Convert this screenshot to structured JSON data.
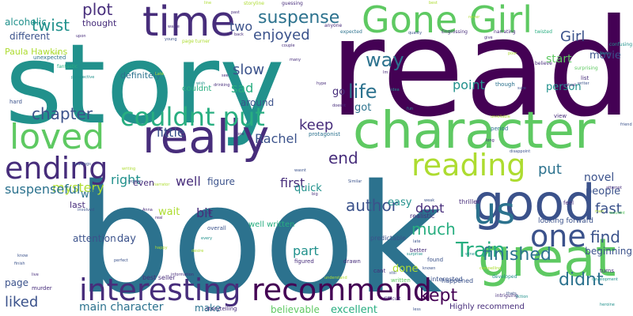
{
  "palette": {
    "dark_purple": "#440154",
    "indigo": "#472d7b",
    "slate_blue": "#3b528b",
    "steel_blue": "#2c728e",
    "teal": "#21918c",
    "sea_green": "#28ae80",
    "green": "#5ec962",
    "lime": "#addc30",
    "yellow": "#fde725",
    "background": "#ffffff"
  },
  "words": [
    {
      "text": "book",
      "color": "steel_blue",
      "weight": 1.0
    },
    {
      "text": "read",
      "color": "dark_purple",
      "weight": 0.95
    },
    {
      "text": "story",
      "color": "teal",
      "weight": 0.9
    },
    {
      "text": "character",
      "color": "green",
      "weight": 0.6
    },
    {
      "text": "Gone Girl",
      "color": "green",
      "weight": 0.45
    },
    {
      "text": "good",
      "color": "slate_blue",
      "weight": 0.45
    },
    {
      "text": "great",
      "color": "green",
      "weight": 0.45
    },
    {
      "text": "really",
      "color": "indigo",
      "weight": 0.45
    },
    {
      "text": "time",
      "color": "indigo",
      "weight": 0.4
    },
    {
      "text": "loved",
      "color": "green",
      "weight": 0.35
    },
    {
      "text": "recommend",
      "color": "dark_purple",
      "weight": 0.33
    },
    {
      "text": "interesting",
      "color": "indigo",
      "weight": 0.33
    },
    {
      "text": "ending",
      "color": "indigo",
      "weight": 0.33
    },
    {
      "text": "reading",
      "color": "lime",
      "weight": 0.3
    },
    {
      "text": "one",
      "color": "slate_blue",
      "weight": 0.3
    },
    {
      "text": "us",
      "color": "steel_blue",
      "weight": 0.3
    },
    {
      "text": "couldnt put",
      "color": "sea_green",
      "weight": 0.28
    },
    {
      "text": "way",
      "color": "steel_blue",
      "weight": 0.22
    },
    {
      "text": "life",
      "color": "steel_blue",
      "weight": 0.22
    },
    {
      "text": "Train",
      "color": "sea_green",
      "weight": 0.22
    },
    {
      "text": "suspense",
      "color": "steel_blue",
      "weight": 0.2
    },
    {
      "text": "finished",
      "color": "steel_blue",
      "weight": 0.2
    },
    {
      "text": "kept",
      "color": "dark_purple",
      "weight": 0.2
    },
    {
      "text": "didnt",
      "color": "steel_blue",
      "weight": 0.2
    },
    {
      "text": "plot",
      "color": "indigo",
      "weight": 0.18
    },
    {
      "text": "twist",
      "color": "teal",
      "weight": 0.18
    },
    {
      "text": "chapter",
      "color": "slate_blue",
      "weight": 0.18
    },
    {
      "text": "enjoyed",
      "color": "slate_blue",
      "weight": 0.18
    },
    {
      "text": "Girl",
      "color": "slate_blue",
      "weight": 0.18
    },
    {
      "text": "slow",
      "color": "slate_blue",
      "weight": 0.18
    },
    {
      "text": "keep",
      "color": "indigo",
      "weight": 0.18
    },
    {
      "text": "end",
      "color": "indigo",
      "weight": 0.18
    },
    {
      "text": "much",
      "color": "sea_green",
      "weight": 0.18
    },
    {
      "text": "put",
      "color": "steel_blue",
      "weight": 0.18
    },
    {
      "text": "author",
      "color": "slate_blue",
      "weight": 0.18
    },
    {
      "text": "find",
      "color": "slate_blue",
      "weight": 0.18
    },
    {
      "text": "fast",
      "color": "slate_blue",
      "weight": 0.18
    },
    {
      "text": "liked",
      "color": "slate_blue",
      "weight": 0.16
    },
    {
      "text": "Rachel",
      "color": "slate_blue",
      "weight": 0.16
    },
    {
      "text": "right",
      "color": "teal",
      "weight": 0.16
    },
    {
      "text": "well",
      "color": "indigo",
      "weight": 0.16
    },
    {
      "text": "first",
      "color": "indigo",
      "weight": 0.16
    },
    {
      "text": "bit",
      "color": "indigo",
      "weight": 0.16
    },
    {
      "text": "two",
      "color": "slate_blue",
      "weight": 0.16
    },
    {
      "text": "sad",
      "color": "sea_green",
      "weight": 0.16
    },
    {
      "text": "little",
      "color": "slate_blue",
      "weight": 0.16
    },
    {
      "text": "point",
      "color": "teal",
      "weight": 0.16
    },
    {
      "text": "novel",
      "color": "slate_blue",
      "weight": 0.15
    },
    {
      "text": "dont",
      "color": "indigo",
      "weight": 0.15
    },
    {
      "text": "part",
      "color": "teal",
      "weight": 0.15
    },
    {
      "text": "mystery",
      "color": "lime",
      "weight": 0.15
    },
    {
      "text": "suspenseful",
      "color": "steel_blue",
      "weight": 0.15
    },
    {
      "text": "main character",
      "color": "steel_blue",
      "weight": 0.14
    },
    {
      "text": "start",
      "color": "green",
      "weight": 0.14
    },
    {
      "text": "movie",
      "color": "slate_blue",
      "weight": 0.13
    },
    {
      "text": "person",
      "color": "teal",
      "weight": 0.13
    },
    {
      "text": "people",
      "color": "slate_blue",
      "weight": 0.13
    },
    {
      "text": "will",
      "color": "steel_blue",
      "weight": 0.13
    },
    {
      "text": "day",
      "color": "slate_blue",
      "weight": 0.13
    },
    {
      "text": "wait",
      "color": "lime",
      "weight": 0.13
    },
    {
      "text": "done",
      "color": "lime",
      "weight": 0.13
    },
    {
      "text": "go",
      "color": "indigo",
      "weight": 0.13
    },
    {
      "text": "got",
      "color": "steel_blue",
      "weight": 0.13
    },
    {
      "text": "quick",
      "color": "teal",
      "weight": 0.13
    },
    {
      "text": "easy",
      "color": "teal",
      "weight": 0.13
    },
    {
      "text": "excellent",
      "color": "sea_green",
      "weight": 0.13
    },
    {
      "text": "believable",
      "color": "green",
      "weight": 0.12
    },
    {
      "text": "figure",
      "color": "slate_blue",
      "weight": 0.12
    },
    {
      "text": "around",
      "color": "slate_blue",
      "weight": 0.12
    },
    {
      "text": "attention",
      "color": "slate_blue",
      "weight": 0.12
    },
    {
      "text": "different",
      "color": "slate_blue",
      "weight": 0.12
    },
    {
      "text": "alcoholic",
      "color": "teal",
      "weight": 0.12
    },
    {
      "text": "page",
      "color": "slate_blue",
      "weight": 0.12
    },
    {
      "text": "make",
      "color": "steel_blue",
      "weight": 0.12
    },
    {
      "text": "beginning",
      "color": "slate_blue",
      "weight": 0.12
    },
    {
      "text": "definitely",
      "color": "steel_blue",
      "weight": 0.11
    },
    {
      "text": "Paula Hawkins",
      "color": "lime",
      "weight": 0.11
    },
    {
      "text": "thought",
      "color": "indigo",
      "weight": 0.11
    },
    {
      "text": "even",
      "color": "indigo",
      "weight": 0.11
    },
    {
      "text": "last",
      "color": "indigo",
      "weight": 0.11
    },
    {
      "text": "well written",
      "color": "sea_green",
      "weight": 0.1
    },
    {
      "text": "Highly recommend",
      "color": "indigo",
      "weight": 0.1
    },
    {
      "text": "looking forward",
      "color": "slate_blue",
      "weight": 0.09
    },
    {
      "text": "couldnt",
      "color": "sea_green",
      "weight": 0.1
    },
    {
      "text": "best seller",
      "color": "indigo",
      "weight": 0.08
    },
    {
      "text": "interested",
      "color": "slate_blue",
      "weight": 0.08
    },
    {
      "text": "happened",
      "color": "slate_blue",
      "weight": 0.08
    },
    {
      "text": "thriller",
      "color": "indigo",
      "weight": 0.08
    },
    {
      "text": "realistic",
      "color": "indigo",
      "weight": 0.08
    },
    {
      "text": "predictable",
      "color": "slate_blue",
      "weight": 0.08
    },
    {
      "text": "unexpected",
      "color": "steel_blue",
      "weight": 0.07
    },
    {
      "text": "protagonist",
      "color": "steel_blue",
      "weight": 0.07
    },
    {
      "text": "storytelling",
      "color": "indigo",
      "weight": 0.07
    },
    {
      "text": "view",
      "color": "indigo",
      "weight": 0.07
    },
    {
      "text": "period",
      "color": "steel_blue",
      "weight": 0.07
    },
    {
      "text": "though",
      "color": "steel_blue",
      "weight": 0.07
    },
    {
      "text": "murder",
      "color": "indigo",
      "weight": 0.07
    },
    {
      "text": "figured",
      "color": "indigo",
      "weight": 0.07
    },
    {
      "text": "drawn",
      "color": "indigo",
      "weight": 0.07
    },
    {
      "text": "hard",
      "color": "slate_blue",
      "weight": 0.07
    },
    {
      "text": "found",
      "color": "slate_blue",
      "weight": 0.07
    },
    {
      "text": "better",
      "color": "indigo",
      "weight": 0.07
    },
    {
      "text": "cant",
      "color": "indigo",
      "weight": 0.07
    },
    {
      "text": "turns",
      "color": "indigo",
      "weight": 0.07
    },
    {
      "text": "feel",
      "color": "indigo",
      "weight": 0.07
    },
    {
      "text": "list",
      "color": "indigo",
      "weight": 0.07
    },
    {
      "text": "overall",
      "color": "slate_blue",
      "weight": 0.07
    },
    {
      "text": "written",
      "color": "green",
      "weight": 0.07
    },
    {
      "text": "difficult",
      "color": "indigo",
      "weight": 0.06
    },
    {
      "text": "Engrossing",
      "color": "indigo",
      "weight": 0.06
    },
    {
      "text": "expected",
      "color": "steel_blue",
      "weight": 0.06
    },
    {
      "text": "narrating",
      "color": "indigo",
      "weight": 0.06
    },
    {
      "text": "twisted",
      "color": "sea_green",
      "weight": 0.06
    },
    {
      "text": "confusing",
      "color": "teal",
      "weight": 0.06
    },
    {
      "text": "surprising",
      "color": "green",
      "weight": 0.06
    },
    {
      "text": "guessing",
      "color": "indigo",
      "weight": 0.06
    },
    {
      "text": "storyline",
      "color": "lime",
      "weight": 0.06
    },
    {
      "text": "intriguing",
      "color": "indigo",
      "weight": 0.06
    },
    {
      "text": "developed",
      "color": "teal",
      "weight": 0.06
    },
    {
      "text": "believe",
      "color": "indigo",
      "weight": 0.06
    },
    {
      "text": "fantastic",
      "color": "sea_green",
      "weight": 0.06
    },
    {
      "text": "perspective",
      "color": "teal",
      "weight": 0.05
    },
    {
      "text": "page turner",
      "color": "lime",
      "weight": 0.06
    },
    {
      "text": "anyone",
      "color": "indigo",
      "weight": 0.06
    },
    {
      "text": "quality",
      "color": "slate_blue",
      "weight": 0.05
    },
    {
      "text": "never",
      "color": "lime",
      "weight": 0.05
    },
    {
      "text": "give",
      "color": "indigo",
      "weight": 0.05
    },
    {
      "text": "poor",
      "color": "lime",
      "weight": 0.05
    },
    {
      "text": "None",
      "color": "teal",
      "weight": 0.05
    },
    {
      "text": "Similar",
      "color": "slate_blue",
      "weight": 0.05
    },
    {
      "text": "disappoint",
      "color": "slate_blue",
      "weight": 0.05
    },
    {
      "text": "unreliable",
      "color": "lime",
      "weight": 0.05
    },
    {
      "text": "long",
      "color": "indigo",
      "weight": 0.05
    },
    {
      "text": "attempt",
      "color": "indigo",
      "weight": 0.05
    },
    {
      "text": "wouldnt",
      "color": "green",
      "weight": 0.05
    },
    {
      "text": "men",
      "color": "lime",
      "weight": 0.05
    },
    {
      "text": "hype",
      "color": "indigo",
      "weight": 0.05
    },
    {
      "text": "hope",
      "color": "indigo",
      "weight": 0.05
    },
    {
      "text": "wasnt",
      "color": "slate_blue",
      "weight": 0.05
    },
    {
      "text": "weak",
      "color": "slate_blue",
      "weight": 0.05
    },
    {
      "text": "late",
      "color": "slate_blue",
      "weight": 0.05
    },
    {
      "text": "known",
      "color": "slate_blue",
      "weight": 0.05
    },
    {
      "text": "surprise",
      "color": "teal",
      "weight": 0.05
    },
    {
      "text": "wine",
      "color": "teal",
      "weight": 0.05
    },
    {
      "text": "fiction",
      "color": "teal",
      "weight": 0.05
    },
    {
      "text": "heroine",
      "color": "teal",
      "weight": 0.05
    },
    {
      "text": "women",
      "color": "slate_blue",
      "weight": 0.05
    },
    {
      "text": "writing",
      "color": "lime",
      "weight": 0.05
    },
    {
      "text": "narrator",
      "color": "lime",
      "weight": 0.05
    },
    {
      "text": "headings",
      "color": "slate_blue",
      "weight": 0.05
    },
    {
      "text": "involved",
      "color": "slate_blue",
      "weight": 0.05
    },
    {
      "text": "Anna",
      "color": "indigo",
      "weight": 0.05
    },
    {
      "text": "real",
      "color": "indigo",
      "weight": 0.05
    },
    {
      "text": "ok",
      "color": "indigo",
      "weight": 0.05
    },
    {
      "text": "every",
      "color": "teal",
      "weight": 0.05
    },
    {
      "text": "happy",
      "color": "lime",
      "weight": 0.05
    },
    {
      "text": "desire",
      "color": "lime",
      "weight": 0.05
    },
    {
      "text": "perfect",
      "color": "slate_blue",
      "weight": 0.05
    },
    {
      "text": "information",
      "color": "indigo",
      "weight": 0.05
    },
    {
      "text": "understand",
      "color": "lime",
      "weight": 0.05
    },
    {
      "text": "still",
      "color": "slate_blue",
      "weight": 0.05
    },
    {
      "text": "finish",
      "color": "slate_blue",
      "weight": 0.05
    },
    {
      "text": "know",
      "color": "slate_blue",
      "weight": 0.05
    },
    {
      "text": "live",
      "color": "indigo",
      "weight": 0.05
    },
    {
      "text": "fun",
      "color": "teal",
      "weight": 0.05
    },
    {
      "text": "idea",
      "color": "teal",
      "weight": 0.05
    },
    {
      "text": "Im",
      "color": "indigo",
      "weight": 0.05
    },
    {
      "text": "doesnt",
      "color": "indigo",
      "weight": 0.05
    },
    {
      "text": "see",
      "color": "indigo",
      "weight": 0.05
    },
    {
      "text": "wish",
      "color": "teal",
      "weight": 0.05
    },
    {
      "text": "many",
      "color": "indigo",
      "weight": 0.05
    },
    {
      "text": "couple",
      "color": "indigo",
      "weight": 0.05
    },
    {
      "text": "back",
      "color": "indigo",
      "weight": 0.05
    },
    {
      "text": "waste",
      "color": "indigo",
      "weight": 0.05
    },
    {
      "text": "upon",
      "color": "indigo",
      "weight": 0.05
    },
    {
      "text": "young",
      "color": "slate_blue",
      "weight": 0.05
    },
    {
      "text": "line",
      "color": "lime",
      "weight": 0.05
    },
    {
      "text": "past",
      "color": "indigo",
      "weight": 0.05
    },
    {
      "text": "best",
      "color": "lime",
      "weight": 0.05
    },
    {
      "text": "sick",
      "color": "lime",
      "weight": 0.05
    },
    {
      "text": "drinking",
      "color": "indigo",
      "weight": 0.05
    },
    {
      "text": "big",
      "color": "indigo",
      "weight": 0.05
    },
    {
      "text": "friend",
      "color": "slate_blue",
      "weight": 0.05
    },
    {
      "text": "development",
      "color": "teal",
      "weight": 0.05
    },
    {
      "text": "writer",
      "color": "slate_blue",
      "weight": 0.05
    },
    {
      "text": "sure",
      "color": "slate_blue",
      "weight": 0.05
    },
    {
      "text": "mutual",
      "color": "indigo",
      "weight": 0.05
    },
    {
      "text": "thats",
      "color": "slate_blue",
      "weight": 0.05
    },
    {
      "text": "less",
      "color": "slate_blue",
      "weight": 0.05
    },
    {
      "text": "compelling",
      "color": "lime",
      "weight": 0.05
    },
    {
      "text": "Late",
      "color": "lime",
      "weight": 0.05
    }
  ]
}
